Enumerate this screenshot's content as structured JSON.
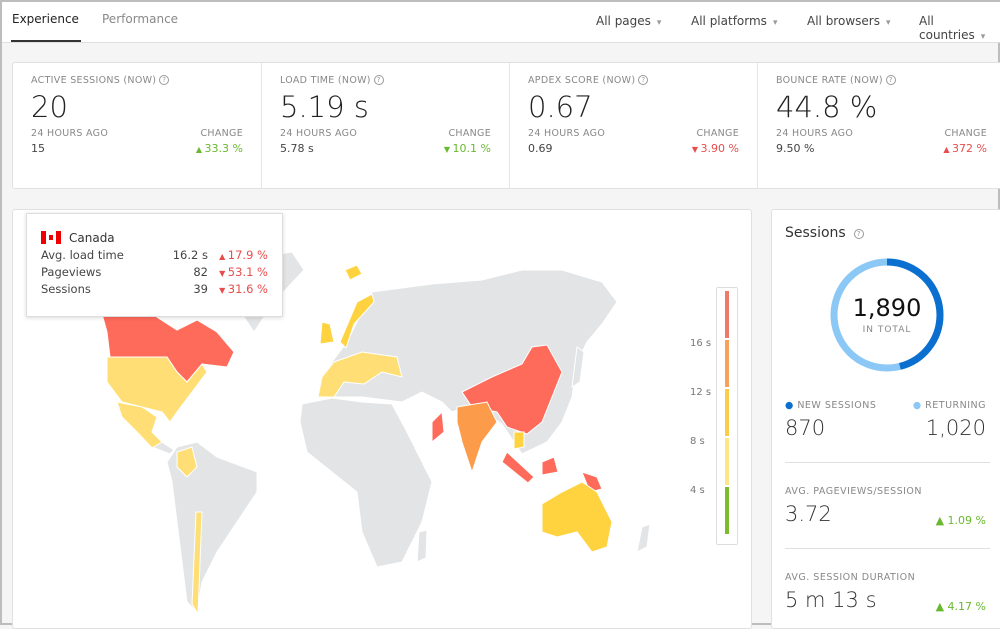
{
  "tabs": [
    {
      "label": "Experience",
      "active": true
    },
    {
      "label": "Performance",
      "active": false
    }
  ],
  "filters": [
    "All pages",
    "All platforms",
    "All browsers",
    "All countries"
  ],
  "kpis": [
    {
      "label": "ACTIVE SESSIONS (NOW)",
      "value": "20",
      "ago_label": "24 HOURS AGO",
      "ago": "15",
      "change_label": "CHANGE",
      "change": "33.3 %",
      "dir": "up",
      "good": true
    },
    {
      "label": "LOAD TIME (NOW)",
      "value": "5.19 s",
      "ago_label": "24 HOURS AGO",
      "ago": "5.78 s",
      "change_label": "CHANGE",
      "change": "10.1 %",
      "dir": "down",
      "good": true
    },
    {
      "label": "APDEX SCORE (NOW)",
      "value": "0.67",
      "ago_label": "24 HOURS AGO",
      "ago": "0.69",
      "change_label": "CHANGE",
      "change": "3.90 %",
      "dir": "down",
      "good": false
    },
    {
      "label": "BOUNCE RATE (NOW)",
      "value": "44.8 %",
      "ago_label": "24 HOURS AGO",
      "ago": "9.50 %",
      "change_label": "CHANGE",
      "change": "372 %",
      "dir": "up",
      "good": false
    }
  ],
  "tooltip": {
    "country": "Canada",
    "rows": [
      {
        "label": "Avg. load time",
        "value": "16.2 s",
        "change": "17.9 %",
        "dir": "up"
      },
      {
        "label": "Pageviews",
        "value": "82",
        "change": "53.1 %",
        "dir": "down"
      },
      {
        "label": "Sessions",
        "value": "39",
        "change": "31.6 %",
        "dir": "down"
      }
    ]
  },
  "legend": {
    "ticks": [
      "16 s",
      "12 s",
      "8 s",
      "4 s"
    ],
    "colors": [
      "#f07a6a",
      "#f5a25d",
      "#fccd4c",
      "#fde58a",
      "#7cbb2c"
    ]
  },
  "colors": {
    "red": "#fe6b5b",
    "orange": "#fc9c4b",
    "yellow": "#ffd23f",
    "light_yellow": "#ffdf75",
    "gray": "#e2e4e6",
    "new": "#0b6fcf",
    "returning": "#8cc8f5"
  },
  "sessions": {
    "title": "Sessions",
    "total": "1,890",
    "total_label": "IN TOTAL",
    "new_label": "NEW SESSIONS",
    "new": "870",
    "new_count": 870,
    "ret_label": "RETURNING",
    "returning": "1,020",
    "returning_count": 1020,
    "pageviews_label": "AVG. PAGEVIEWS/SESSION",
    "pageviews": "3.72",
    "pageviews_change": "1.09 %",
    "duration_label": "AVG. SESSION DURATION",
    "duration": "5 m 13 s",
    "duration_change": "4.17 %"
  }
}
